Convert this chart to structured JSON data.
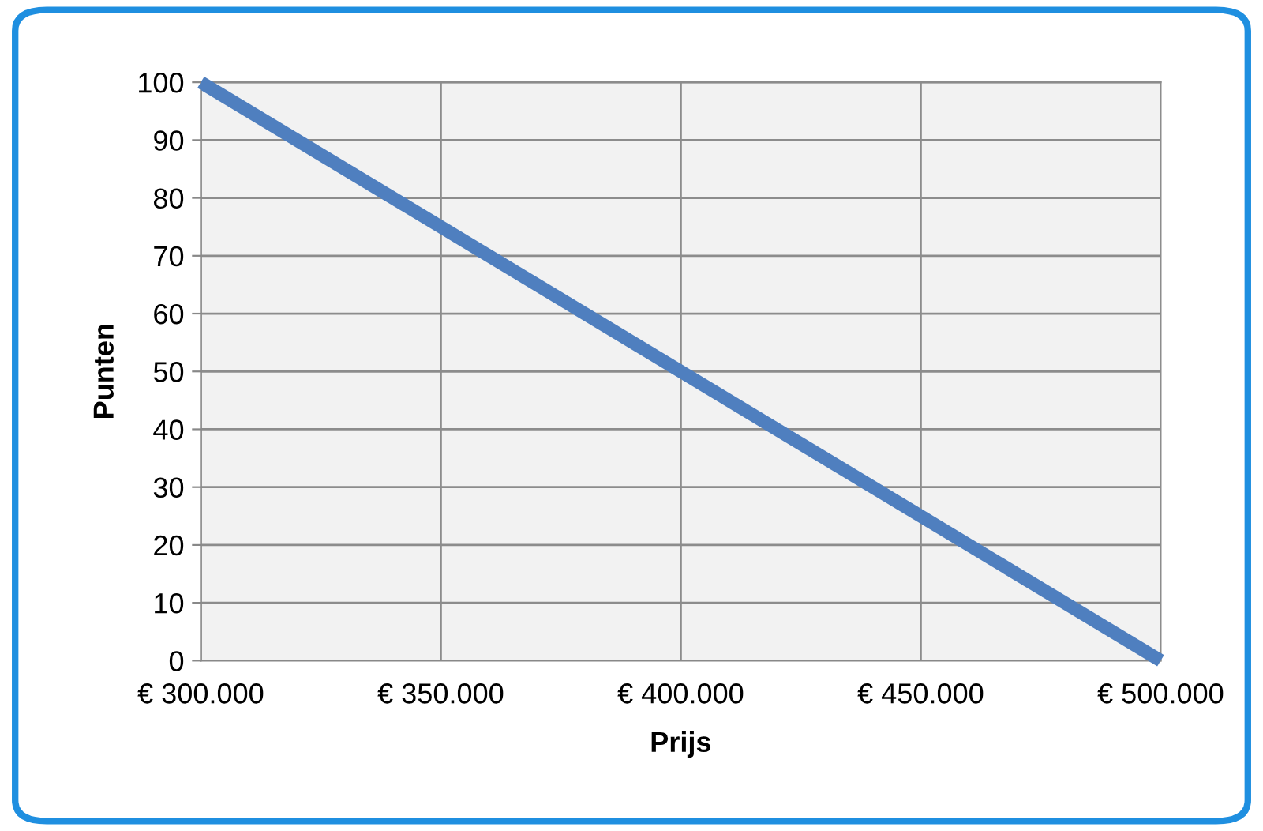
{
  "chart_data": {
    "type": "line",
    "xlabel": "Prijs",
    "ylabel": "Punten",
    "x": [
      300000,
      500000
    ],
    "series": [
      {
        "color": "#4f7fbf",
        "values": [
          100,
          0
        ]
      }
    ],
    "xlim": [
      300000,
      500000
    ],
    "xticks": [
      {
        "value": 300000,
        "label": "€ 300.000"
      },
      {
        "value": 350000,
        "label": "€ 350.000"
      },
      {
        "value": 400000,
        "label": "€ 400.000"
      },
      {
        "value": 450000,
        "label": "€ 450.000"
      },
      {
        "value": 500000,
        "label": "€ 500.000"
      }
    ],
    "ylim": [
      0,
      100
    ],
    "yticks": [
      0,
      10,
      20,
      30,
      40,
      50,
      60,
      70,
      80,
      90,
      100
    ],
    "grid": true,
    "marker": "none",
    "line_style": "solid"
  }
}
